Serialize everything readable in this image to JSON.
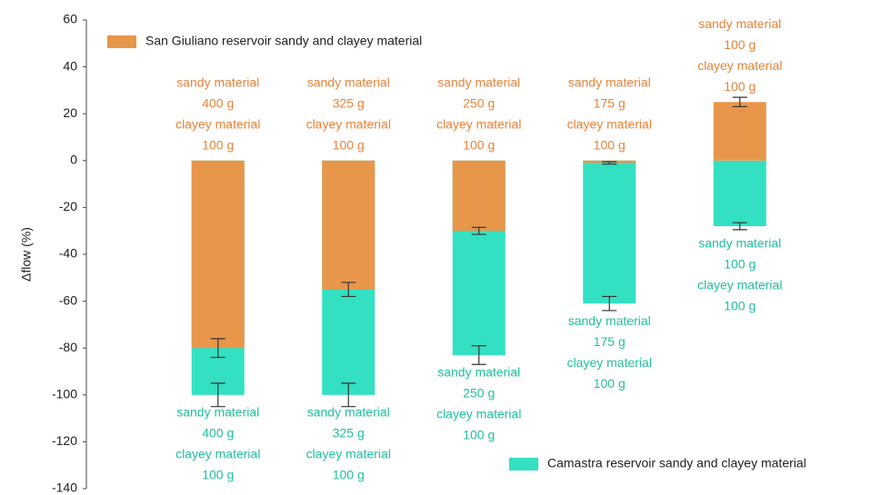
{
  "chart_data": {
    "type": "bar",
    "y_label": "Δflow (%)",
    "categories": [
      null,
      null,
      null,
      null,
      null
    ],
    "ylim": [
      -140,
      60
    ],
    "yticks": [
      -140,
      -120,
      -100,
      -80,
      -60,
      -40,
      -20,
      0,
      20,
      40,
      60
    ],
    "grid": false,
    "series": [
      {
        "name": "San Giuliano reservoir sandy and clayey material",
        "color": "#e8964a",
        "text_color": "#e8833a",
        "values": [
          -80,
          -55,
          -30,
          -1,
          25
        ],
        "errors": [
          4,
          3,
          1.5,
          0.5,
          2
        ],
        "labels": [
          [
            "sandy material",
            "400 g",
            "clayey material",
            "100 g"
          ],
          [
            "sandy material",
            "325 g",
            "clayey material",
            "100 g"
          ],
          [
            "sandy material",
            "250 g",
            "clayey material",
            "100 g"
          ],
          [
            "sandy material",
            "175 g",
            "clayey material",
            "100 g"
          ],
          [
            "sandy material",
            "100 g",
            "clayey material",
            "100 g"
          ]
        ]
      },
      {
        "name": "Camastra reservoir sandy and clayey material",
        "color": "#33e0c2",
        "text_color": "#22bf9f",
        "values": [
          -100,
          -100,
          -83,
          -61,
          -28
        ],
        "errors": [
          5,
          5,
          4,
          3,
          1.5
        ],
        "labels": [
          [
            "sandy material",
            "400 g",
            "clayey material",
            "100 g"
          ],
          [
            "sandy material",
            "325 g",
            "clayey material",
            "100 g"
          ],
          [
            "sandy material",
            "250 g",
            "clayey material",
            "100 g"
          ],
          [
            "sandy material",
            "175 g",
            "clayey material",
            "100 g"
          ],
          [
            "sandy material",
            "100 g",
            "clayey material",
            "100 g"
          ]
        ]
      }
    ]
  }
}
